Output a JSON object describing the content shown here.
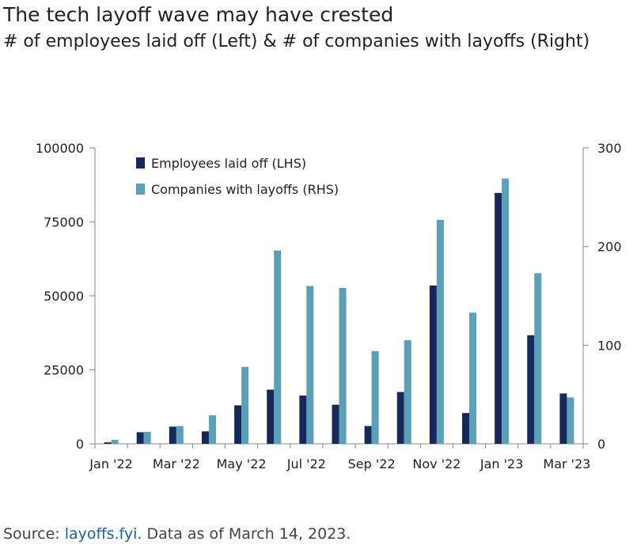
{
  "header": {
    "title": "The tech layoff wave may have crested",
    "subtitle": "# of employees laid off (Left) & # of companies with layoffs (Right)"
  },
  "footer": {
    "source_label": "Source: ",
    "source_link": "layoffs.fyi",
    "source_rest": ". Data as of March 14, 2023."
  },
  "chart_data": {
    "type": "bar",
    "categories": [
      "Jan '22",
      "Feb '22",
      "Mar '22",
      "Apr '22",
      "May '22",
      "Jun '22",
      "Jul '22",
      "Aug '22",
      "Sep '22",
      "Oct '22",
      "Nov '22",
      "Dec '22",
      "Jan '23",
      "Feb '23",
      "Mar '23"
    ],
    "x_tick_labels": [
      "Jan '22",
      "Mar '22",
      "May '22",
      "Jul '22",
      "Sep '22",
      "Nov '22",
      "Jan '23",
      "Mar '23"
    ],
    "series": [
      {
        "name": "Employees laid off (LHS)",
        "axis": "left",
        "color": "#14285a",
        "values": [
          500,
          3900,
          5800,
          4200,
          13000,
          18300,
          16300,
          13200,
          6000,
          17500,
          53500,
          10400,
          84800,
          36700,
          17000
        ]
      },
      {
        "name": "Companies with layoffs (RHS)",
        "axis": "right",
        "color": "#5aa0b8",
        "values": [
          4,
          12,
          18,
          29,
          78,
          196,
          160,
          158,
          94,
          105,
          227,
          133,
          269,
          173,
          47
        ]
      }
    ],
    "y_left": {
      "min": 0,
      "max": 100000,
      "ticks": [
        0,
        25000,
        50000,
        75000,
        100000
      ]
    },
    "y_right": {
      "min": 0,
      "max": 300,
      "ticks": [
        0,
        100,
        200,
        300
      ]
    },
    "grid": false,
    "legend_position": "top-left"
  }
}
